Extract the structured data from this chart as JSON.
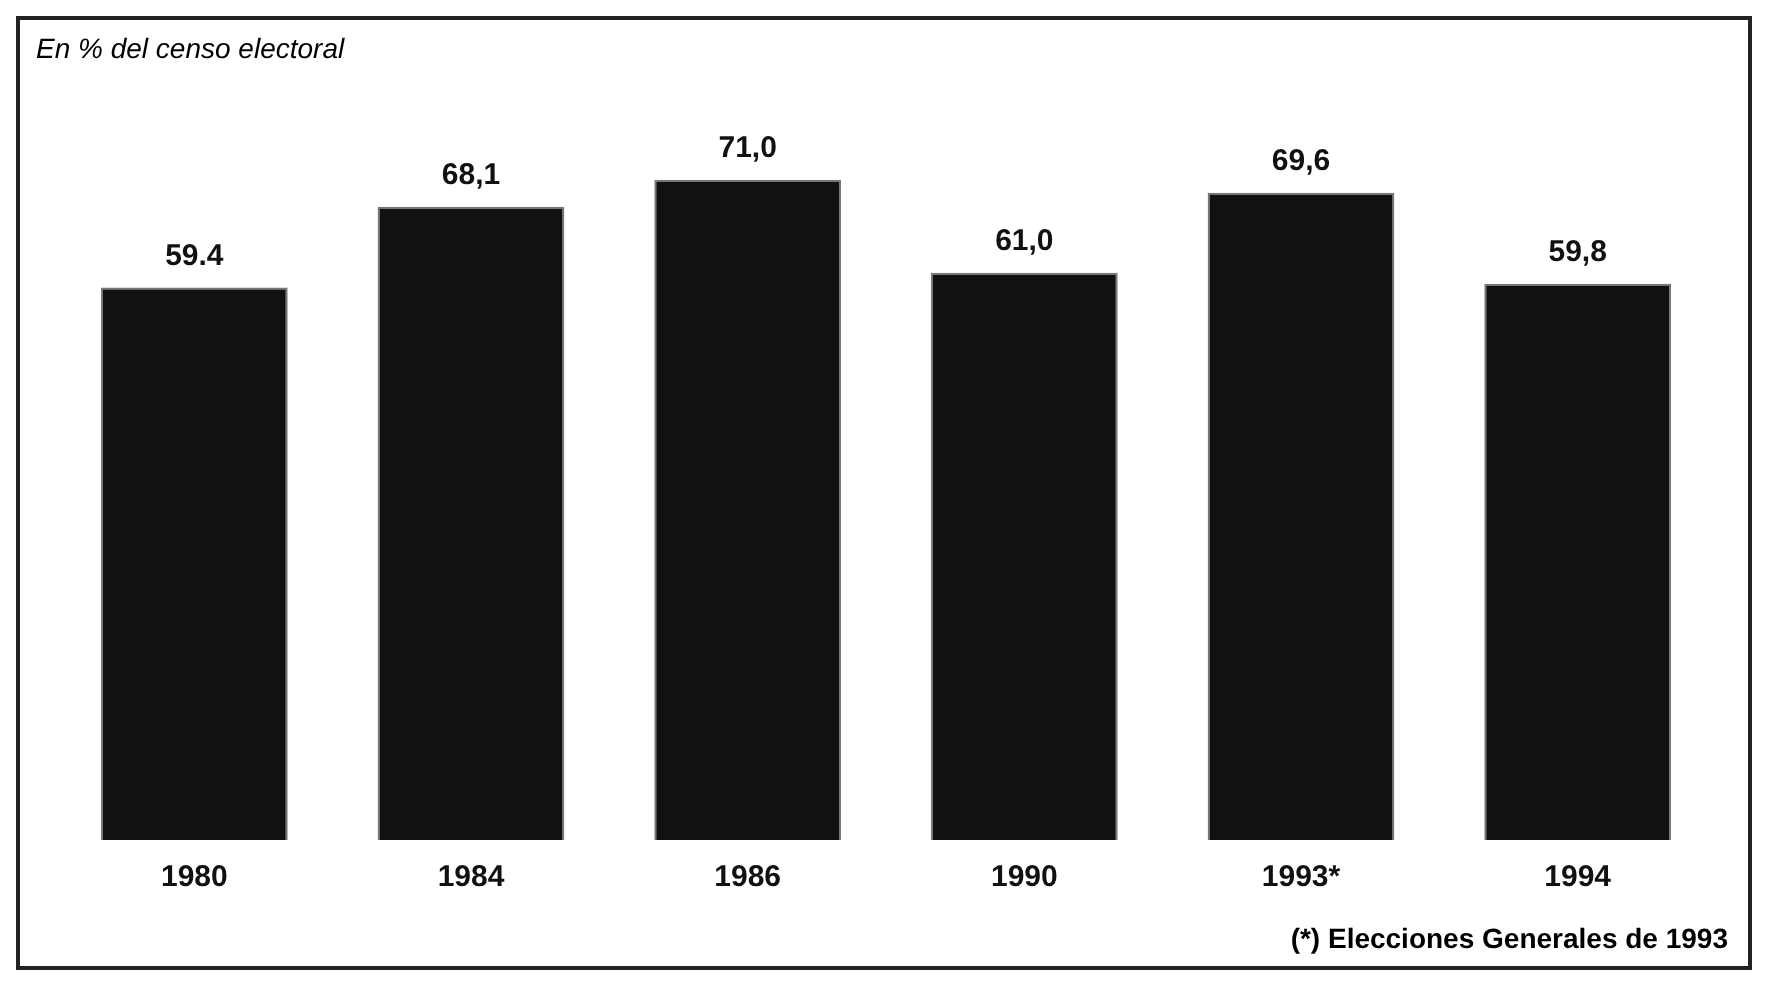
{
  "chart_data": {
    "type": "bar",
    "title": "En % del censo electoral",
    "categories": [
      "1980",
      "1984",
      "1986",
      "1990",
      "1993*",
      "1994"
    ],
    "values": [
      59.4,
      68.1,
      71.0,
      61.0,
      69.6,
      59.8
    ],
    "value_labels": [
      "59.4",
      "68,1",
      "71,0",
      "61,0",
      "69,6",
      "59,8"
    ],
    "color": "#111111",
    "annotations": [
      "(*) Elecciones Generales de 1993"
    ],
    "tick_labels": "x",
    "grid": false,
    "legend": false
  }
}
